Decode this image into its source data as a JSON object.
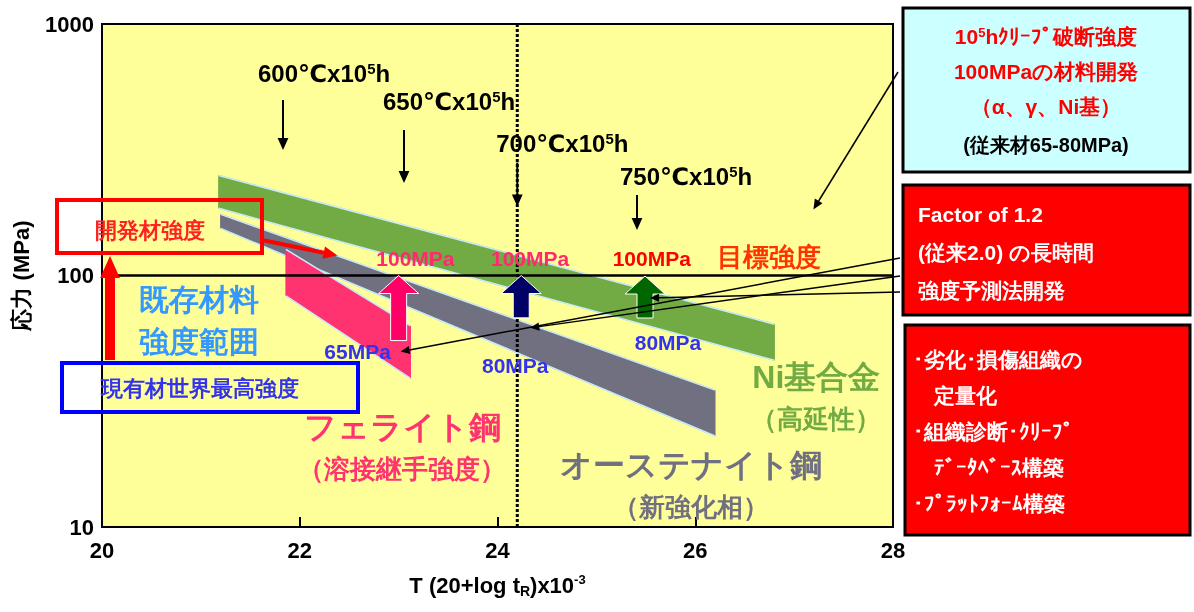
{
  "chart_data": {
    "type": "area",
    "xlabel": "T (20+log t$_{R}$)x10$^{-3}$",
    "ylabel": "応力 (MPa)",
    "xlim": [
      20,
      28
    ],
    "xticks": [
      20,
      22,
      24,
      26,
      28
    ],
    "ylim": [
      10,
      1000
    ],
    "yticks": [
      10,
      100,
      1000
    ],
    "log": "y",
    "grid": false,
    "series": [
      {
        "name": "オーステナイト鋼（新強化相）",
        "color": "#707080",
        "x": [
          21.2,
          26.2
        ],
        "values": [
          null,
          null
        ],
        "upper": [
          175,
          35
        ],
        "lower": [
          154,
          23
        ]
      },
      {
        "name": "Ni基合金（高延性）",
        "color": "#72aa44",
        "x": [
          21.18,
          26.8
        ],
        "values": [
          null,
          null
        ],
        "upper": [
          250,
          64
        ],
        "lower": [
          185,
          46
        ]
      },
      {
        "name": "フェライト鋼（溶接継手強度）",
        "color": "#ff3370",
        "x": [
          21.86,
          23.12
        ],
        "values": [
          null,
          null
        ],
        "upper": [
          127,
          63
        ],
        "lower": [
          83,
          39
        ]
      }
    ],
    "ref_lines": [
      {
        "axis": "y",
        "value": 100,
        "color": "#000000",
        "line_style": "solid"
      },
      {
        "axis": "x",
        "value": 24.2,
        "color": "#000000",
        "line_style": "dotted"
      }
    ],
    "annotations": [
      "600℃x10$^{5}$h",
      "650℃x10$^{5}$h",
      {
        "text": "700℃x10$^{5}$h",
        "x": 24.2,
        "y": 188
      },
      "750℃x10$^{5}$h",
      {
        "text": "100MPa",
        "x": 23.17,
        "y": 100
      },
      {
        "text": "100MPa",
        "x": 24.33,
        "y": 100
      },
      {
        "text": "100MPa",
        "x": 25.56,
        "y": 100
      },
      {
        "text": "目標強度",
        "x": 26.75,
        "y": 100
      },
      {
        "text": "65MPa",
        "x": 23.0,
        "y": 65
      },
      {
        "text": "80MPa",
        "x": 24.24,
        "y": 80
      },
      "80MPa",
      "開発材強度",
      "現有材世界最高強度",
      {
        "text": "既存材料強度範囲",
        "x": 21.86,
        "y": 100
      },
      "10$^{5}$hｸﾘｰﾌﾟ破断強度100MPaの材料開発（α、γ、Ni基）",
      "(従来材65-80MPa)",
      "Factor of 1.2 (従来2.0) の長時間強度予測法開発",
      "･劣化･損傷組織の定量化･組織診断･ｸﾘｰﾌﾟﾃﾞｰﾀﾍﾞｰｽ構築･ﾌﾟﾗｯﾄﾌｫｰﾑ構築"
    ]
  }
}
